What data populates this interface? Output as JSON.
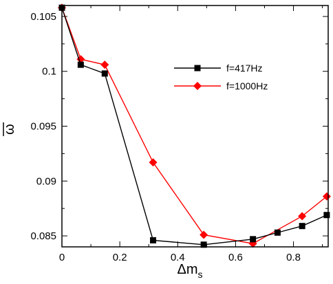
{
  "chart_data": {
    "type": "line",
    "title": "",
    "xlabel_base": "Δm",
    "xlabel_sub": "s",
    "ylabel": "ω",
    "xlim": [
      0,
      0.92
    ],
    "ylim": [
      0.084,
      0.106
    ],
    "xticks": [
      0,
      0.2,
      0.4,
      0.6,
      0.8
    ],
    "xtick_labels": [
      "0",
      "0.2",
      "0.4",
      "0.6",
      "0.8"
    ],
    "yticks": [
      0.085,
      0.09,
      0.095,
      0.1,
      0.105
    ],
    "ytick_labels": [
      "0.085",
      "0.09",
      "0.095",
      "0.1",
      "0.105"
    ],
    "grid": false,
    "legend_position": "top-right",
    "series": [
      {
        "name": "f=417Hz",
        "color": "#000000",
        "marker": "square",
        "x": [
          0,
          0.065,
          0.148,
          0.315,
          0.49,
          0.66,
          0.745,
          0.83,
          0.915
        ],
        "y": [
          0.1058,
          0.1006,
          0.0998,
          0.0846,
          0.0842,
          0.0847,
          0.0853,
          0.0859,
          0.0869
        ]
      },
      {
        "name": "f=1000Hz",
        "color": "#ff0000",
        "marker": "diamond",
        "x": [
          0,
          0.065,
          0.148,
          0.315,
          0.49,
          0.66,
          0.83,
          0.915
        ],
        "y": [
          0.1058,
          0.1011,
          0.1006,
          0.0917,
          0.0851,
          0.0843,
          0.0868,
          0.0886
        ]
      }
    ]
  }
}
